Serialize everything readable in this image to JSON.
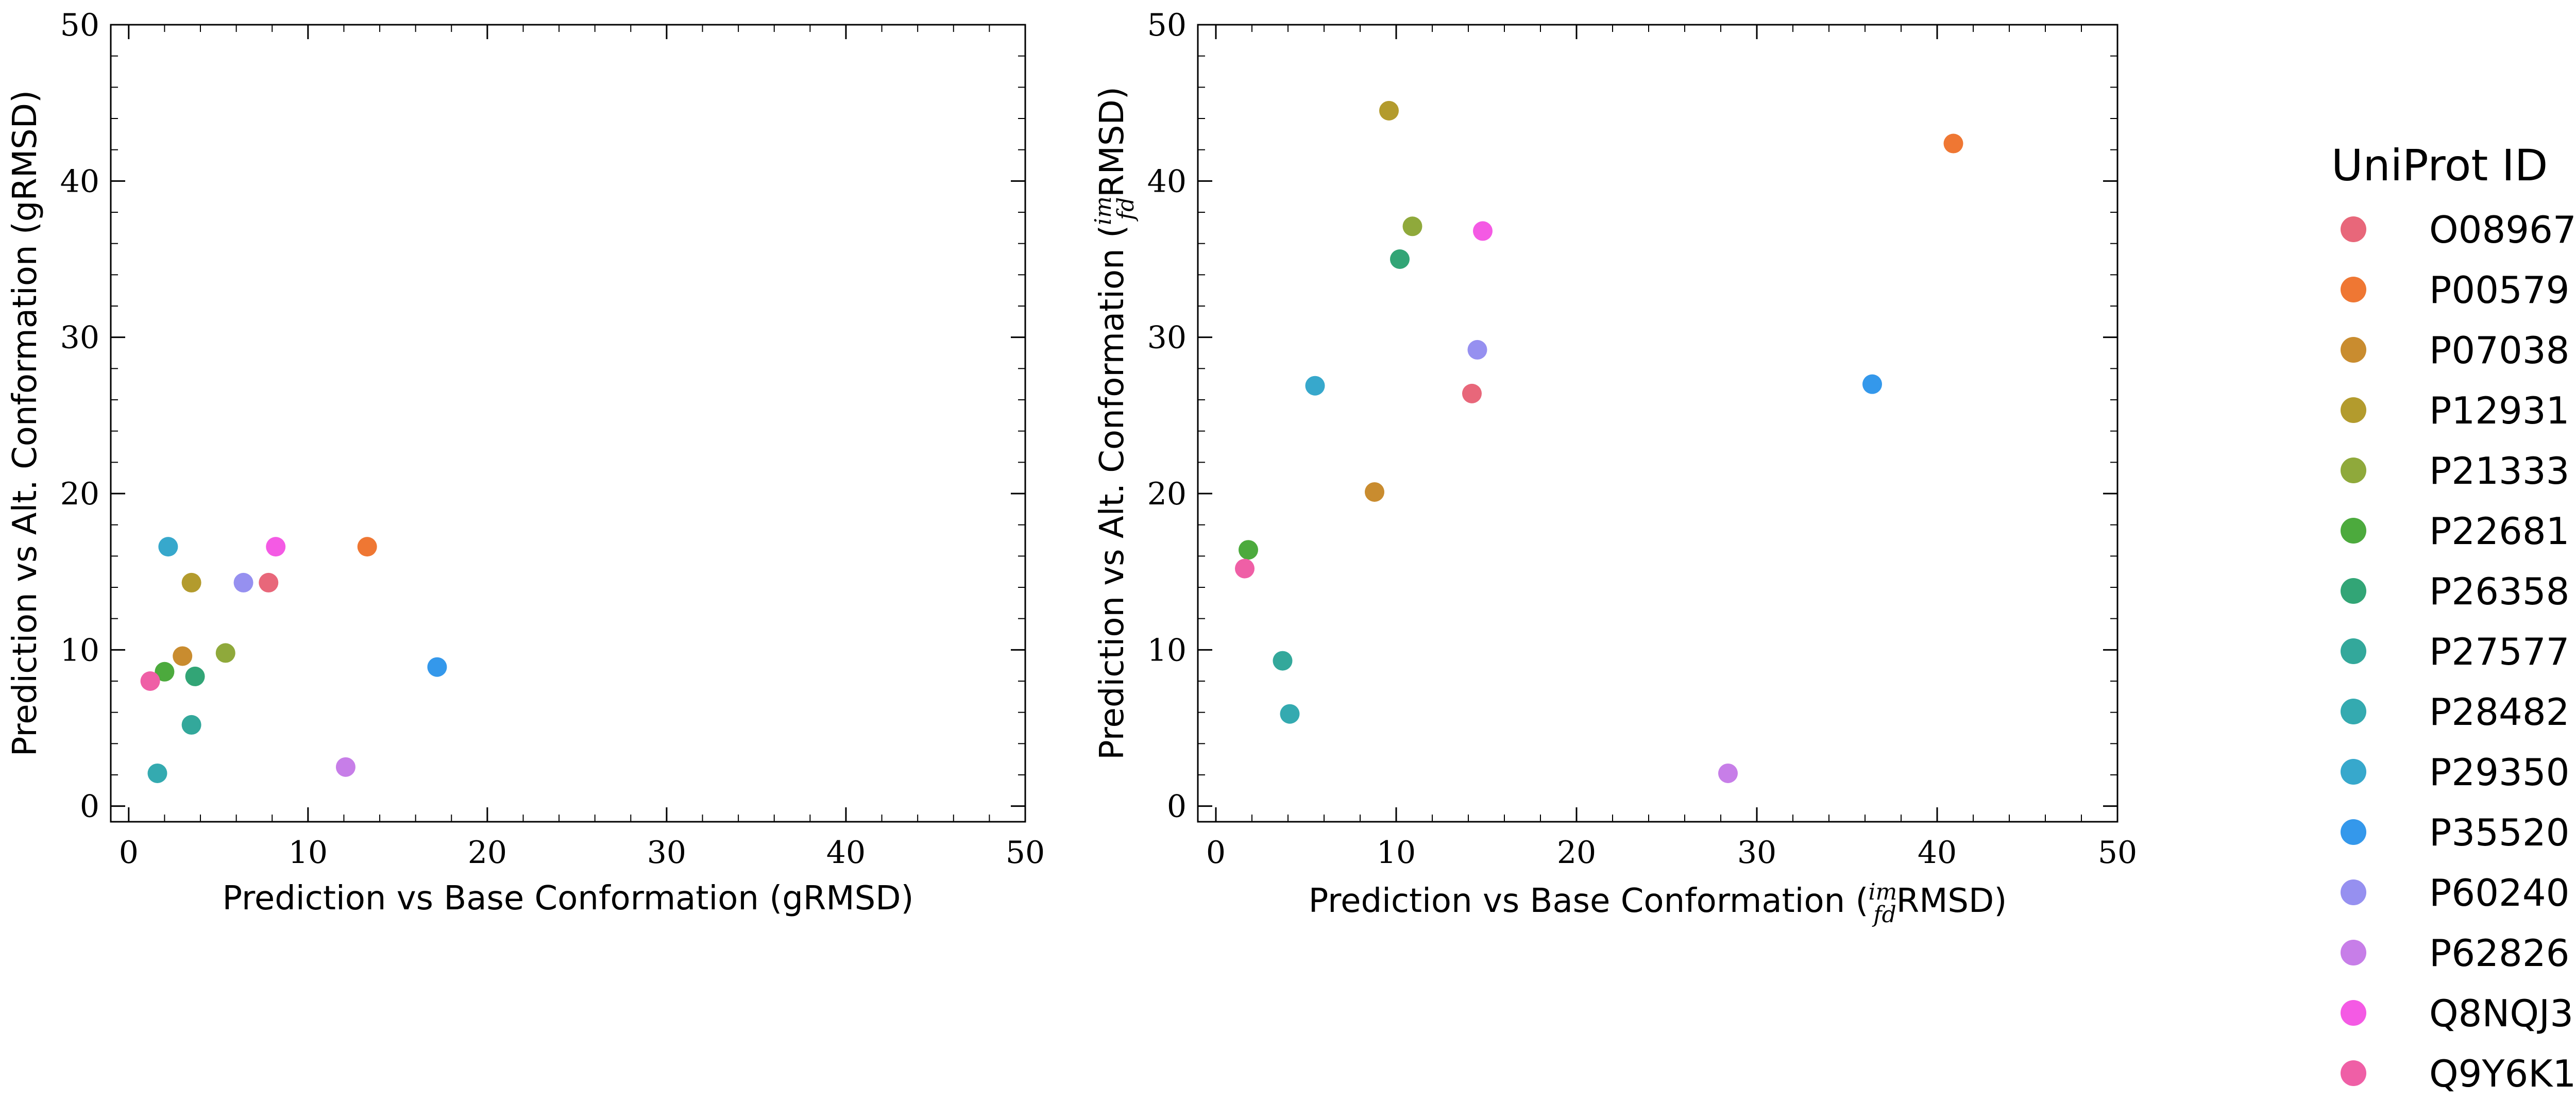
{
  "chart_data": [
    {
      "type": "scatter",
      "xlabel": "Prediction vs Base Conformation (gRMSD)",
      "ylabel": "Prediction vs Alt. Conformation (gRMSD)",
      "xlim": [
        -1,
        50
      ],
      "ylim": [
        -1,
        50
      ],
      "xticks": [
        0,
        10,
        20,
        30,
        40,
        50
      ],
      "yticks": [
        0,
        10,
        20,
        30,
        40,
        50
      ],
      "series": [
        {
          "name": "O08967",
          "x": [
            7.8
          ],
          "y": [
            14.3
          ]
        },
        {
          "name": "P00579",
          "x": [
            13.3
          ],
          "y": [
            16.6
          ]
        },
        {
          "name": "P07038",
          "x": [
            3.0
          ],
          "y": [
            9.6
          ]
        },
        {
          "name": "P12931",
          "x": [
            3.5
          ],
          "y": [
            14.3
          ]
        },
        {
          "name": "P21333",
          "x": [
            5.4
          ],
          "y": [
            9.8
          ]
        },
        {
          "name": "P22681",
          "x": [
            2.0
          ],
          "y": [
            8.6
          ]
        },
        {
          "name": "P26358",
          "x": [
            3.7
          ],
          "y": [
            8.3
          ]
        },
        {
          "name": "P27577",
          "x": [
            3.5
          ],
          "y": [
            5.2
          ]
        },
        {
          "name": "P28482",
          "x": [
            1.6
          ],
          "y": [
            2.1
          ]
        },
        {
          "name": "P29350",
          "x": [
            2.2
          ],
          "y": [
            16.6
          ]
        },
        {
          "name": "P35520",
          "x": [
            17.2
          ],
          "y": [
            8.9
          ]
        },
        {
          "name": "P60240",
          "x": [
            6.4
          ],
          "y": [
            14.3
          ]
        },
        {
          "name": "P62826",
          "x": [
            12.1
          ],
          "y": [
            2.5
          ]
        },
        {
          "name": "Q8NQJ3",
          "x": [
            8.2
          ],
          "y": [
            16.6
          ]
        },
        {
          "name": "Q9Y6K1",
          "x": [
            1.2
          ],
          "y": [
            8.0
          ]
        }
      ]
    },
    {
      "type": "scatter",
      "xlabel_pre": "Prediction vs Base Conformation (",
      "xlabel_sup": "im",
      "xlabel_sub": "fd",
      "xlabel_post": "RMSD)",
      "ylabel_pre": "Prediction vs Alt. Conformation (",
      "ylabel_sup": "im",
      "ylabel_sub": "fd",
      "ylabel_post": "RMSD)",
      "xlim": [
        -1,
        50
      ],
      "ylim": [
        -1,
        50
      ],
      "xticks": [
        0,
        10,
        20,
        30,
        40,
        50
      ],
      "yticks": [
        0,
        10,
        20,
        30,
        40,
        50
      ],
      "series": [
        {
          "name": "O08967",
          "x": [
            14.2
          ],
          "y": [
            26.4
          ]
        },
        {
          "name": "P00579",
          "x": [
            40.9
          ],
          "y": [
            42.4
          ]
        },
        {
          "name": "P07038",
          "x": [
            8.8
          ],
          "y": [
            20.1
          ]
        },
        {
          "name": "P12931",
          "x": [
            9.6
          ],
          "y": [
            44.5
          ]
        },
        {
          "name": "P21333",
          "x": [
            10.9
          ],
          "y": [
            37.1
          ]
        },
        {
          "name": "P22681",
          "x": [
            1.8
          ],
          "y": [
            16.4
          ]
        },
        {
          "name": "P26358",
          "x": [
            10.2
          ],
          "y": [
            35.0
          ]
        },
        {
          "name": "P27577",
          "x": [
            3.7
          ],
          "y": [
            9.3
          ]
        },
        {
          "name": "P28482",
          "x": [
            4.1
          ],
          "y": [
            5.9
          ]
        },
        {
          "name": "P29350",
          "x": [
            5.5
          ],
          "y": [
            26.9
          ]
        },
        {
          "name": "P35520",
          "x": [
            36.4
          ],
          "y": [
            27.0
          ]
        },
        {
          "name": "P60240",
          "x": [
            14.5
          ],
          "y": [
            29.2
          ]
        },
        {
          "name": "P62826",
          "x": [
            28.4
          ],
          "y": [
            2.1
          ]
        },
        {
          "name": "Q8NQJ3",
          "x": [
            14.8
          ],
          "y": [
            36.8
          ]
        },
        {
          "name": "Q9Y6K1",
          "x": [
            1.6
          ],
          "y": [
            15.2
          ]
        }
      ]
    }
  ],
  "legend": {
    "title": "UniProt ID",
    "items": [
      {
        "label": "O08967",
        "color": "#e8677a"
      },
      {
        "label": "P00579",
        "color": "#ef7733"
      },
      {
        "label": "P07038",
        "color": "#c98c2f"
      },
      {
        "label": "P12931",
        "color": "#b39b2d"
      },
      {
        "label": "P21333",
        "color": "#8fa93b"
      },
      {
        "label": "P22681",
        "color": "#4caa3d"
      },
      {
        "label": "P26358",
        "color": "#32a576"
      },
      {
        "label": "P27577",
        "color": "#33a89b"
      },
      {
        "label": "P28482",
        "color": "#34aab0"
      },
      {
        "label": "P29350",
        "color": "#37a8cc"
      },
      {
        "label": "P35520",
        "color": "#3498eb"
      },
      {
        "label": "P60240",
        "color": "#9690f0"
      },
      {
        "label": "P62826",
        "color": "#c77ee8"
      },
      {
        "label": "Q8NQJ3",
        "color": "#f45ae4"
      },
      {
        "label": "Q9Y6K1",
        "color": "#ef5fa6"
      }
    ]
  }
}
